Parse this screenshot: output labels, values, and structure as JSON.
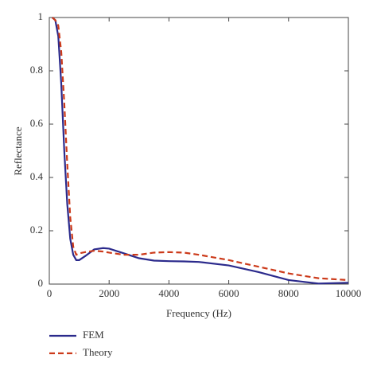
{
  "chart_data": {
    "type": "line",
    "x_label": "Frequency (Hz)",
    "y_label": "Reflectance",
    "x": [
      100,
      200,
      300,
      400,
      500,
      600,
      700,
      800,
      900,
      1000,
      1200,
      1500,
      1800,
      2000,
      2500,
      3000,
      3500,
      4000,
      4500,
      5000,
      6000,
      7000,
      8000,
      9000,
      10000
    ],
    "series": [
      {
        "name": "FEM",
        "color": "#2b2a8c",
        "dash": false,
        "values": [
          1.0,
          0.99,
          0.93,
          0.75,
          0.5,
          0.3,
          0.17,
          0.11,
          0.09,
          0.09,
          0.105,
          0.13,
          0.135,
          0.133,
          0.115,
          0.097,
          0.088,
          0.086,
          0.085,
          0.083,
          0.07,
          0.045,
          0.015,
          0.002,
          0.005
        ]
      },
      {
        "name": "Theory",
        "color": "#cc3a1a",
        "dash": true,
        "values": [
          1.0,
          0.99,
          0.97,
          0.87,
          0.68,
          0.45,
          0.25,
          0.14,
          0.11,
          0.115,
          0.12,
          0.125,
          0.122,
          0.118,
          0.11,
          0.11,
          0.118,
          0.12,
          0.118,
          0.11,
          0.09,
          0.065,
          0.04,
          0.022,
          0.015
        ]
      }
    ],
    "xlim": [
      0,
      10000
    ],
    "xticks": [
      0,
      2000,
      4000,
      6000,
      8000,
      10000
    ],
    "ylim": [
      0,
      1
    ],
    "yticks": [
      0,
      0.2,
      0.4,
      0.6,
      0.8,
      1
    ],
    "legend": "bottom-left"
  }
}
